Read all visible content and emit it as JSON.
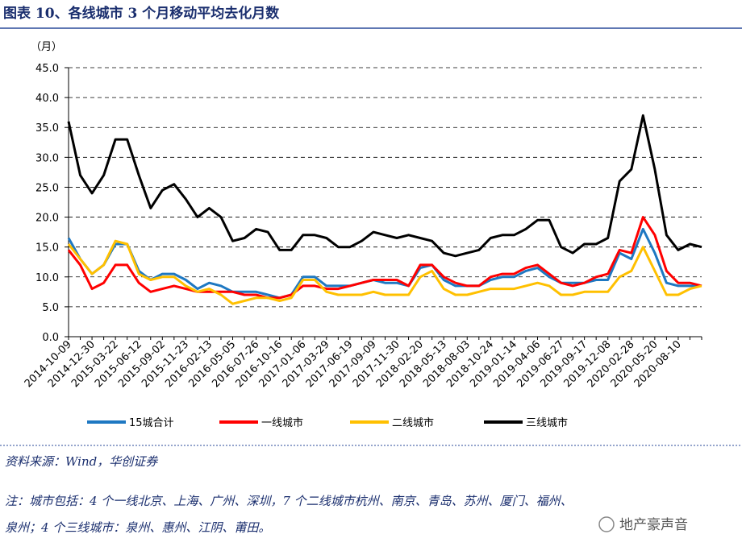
{
  "chart_data": {
    "type": "line",
    "title": "图表 10、各线城市 3 个月移动平均去化月数",
    "ylabel": "（月）",
    "categories": [
      "2014-10-09",
      null,
      "2014-12-30",
      null,
      "2015-03-22",
      null,
      "2015-06-12",
      null,
      "2015-09-02",
      null,
      "2015-11-23",
      null,
      "2016-02-13",
      null,
      "2016-05-05",
      null,
      "2016-07-26",
      null,
      "2016-10-16",
      null,
      "2017-01-06",
      null,
      "2017-03-29",
      null,
      "2017-06-19",
      null,
      "2017-09-09",
      null,
      "2017-11-30",
      null,
      "2018-02-20",
      null,
      "2018-05-13",
      null,
      "2018-08-03",
      null,
      "2018-10-24",
      null,
      "2019-01-14",
      null,
      "2019-04-06",
      null,
      "2019-06-27",
      null,
      "2019-09-17",
      null,
      "2019-12-08",
      null,
      "2020-02-28",
      null,
      "2020-05-20",
      null,
      "2020-08-10",
      null,
      null
    ],
    "series": [
      {
        "name": "15城合计",
        "color": "#1e78c2",
        "values": [
          16.5,
          13,
          10.5,
          12,
          15.5,
          15.5,
          11,
          9.5,
          10.5,
          10.5,
          9.5,
          8,
          9,
          8.5,
          7.5,
          7.5,
          7.5,
          7,
          6.5,
          7,
          10,
          10,
          8.5,
          8.5,
          8.5,
          9,
          9.5,
          9,
          9,
          8.5,
          11.5,
          12,
          9.5,
          8.5,
          8.5,
          8.5,
          9.5,
          10,
          10,
          11,
          11.5,
          10,
          9,
          9,
          9,
          9.5,
          9.5,
          14,
          13,
          18,
          14,
          9,
          8.5,
          8.5,
          8.5
        ]
      },
      {
        "name": "一线城市",
        "color": "#ff0000",
        "values": [
          14.5,
          12,
          8,
          9,
          12,
          12,
          9,
          7.5,
          8,
          8.5,
          8,
          7.5,
          7.5,
          7.5,
          7.5,
          7,
          7,
          6.5,
          6.5,
          7,
          8.5,
          8.5,
          8,
          8,
          8.5,
          9,
          9.5,
          9.5,
          9.5,
          8.5,
          12,
          12,
          10,
          9,
          8.5,
          8.5,
          10,
          10.5,
          10.5,
          11.5,
          12,
          10.5,
          9,
          8.5,
          9,
          10,
          10.5,
          14.5,
          14,
          20,
          17,
          11,
          9,
          9,
          8.5
        ]
      },
      {
        "name": "二线城市",
        "color": "#ffc000",
        "values": [
          15.5,
          13,
          10.5,
          12,
          16,
          15.5,
          10.5,
          9.5,
          10,
          10,
          8.5,
          7.5,
          8,
          7,
          5.5,
          6,
          6.5,
          6.5,
          6,
          6.5,
          9.5,
          9.5,
          7.5,
          7,
          7,
          7,
          7.5,
          7,
          7,
          7,
          10,
          11,
          8,
          7,
          7,
          7.5,
          8,
          8,
          8,
          8.5,
          9,
          8.5,
          7,
          7,
          7.5,
          7.5,
          7.5,
          10,
          11,
          15,
          11,
          7,
          7,
          8,
          8.5
        ]
      },
      {
        "name": "三线城市",
        "color": "#000000",
        "values": [
          36,
          27,
          24,
          27,
          33,
          33,
          27,
          21.5,
          24.5,
          25.5,
          23,
          20,
          21.5,
          20,
          16,
          16.5,
          18,
          17.5,
          14.5,
          14.5,
          17,
          17,
          16.5,
          15,
          15,
          16,
          17.5,
          17,
          16.5,
          17,
          16.5,
          16,
          14,
          13.5,
          14,
          14.5,
          16.5,
          17,
          17,
          18,
          19.5,
          19.5,
          15,
          14,
          15.5,
          15.5,
          16.5,
          26,
          28,
          37,
          28,
          17,
          14.5,
          15.5,
          15
        ]
      }
    ],
    "ylim": [
      0,
      45
    ],
    "yticks": [
      {
        "value": 0,
        "label": "0.0"
      },
      {
        "value": 5,
        "label": "5.0"
      },
      {
        "value": 10,
        "label": "10.0"
      },
      {
        "value": 15,
        "label": "15.0"
      },
      {
        "value": 20,
        "label": "20.0"
      },
      {
        "value": 25,
        "label": "25.0"
      },
      {
        "value": 30,
        "label": "30.0"
      },
      {
        "value": 35,
        "label": "35.0"
      },
      {
        "value": 40,
        "label": "40.0"
      },
      {
        "value": 45,
        "label": "45.0"
      }
    ],
    "grid": true,
    "legend": "bottom"
  },
  "source": "资料来源：Wind，华创证券",
  "notes": [
    "注：城市包括：4 个一线北京、上海、广州、深圳，7 个二线城市杭州、南京、青岛、苏州、厦门、福州、",
    "泉州；4 个三线城市：泉州、惠州、江阴、莆田。"
  ],
  "watermark": "地产豪声音"
}
